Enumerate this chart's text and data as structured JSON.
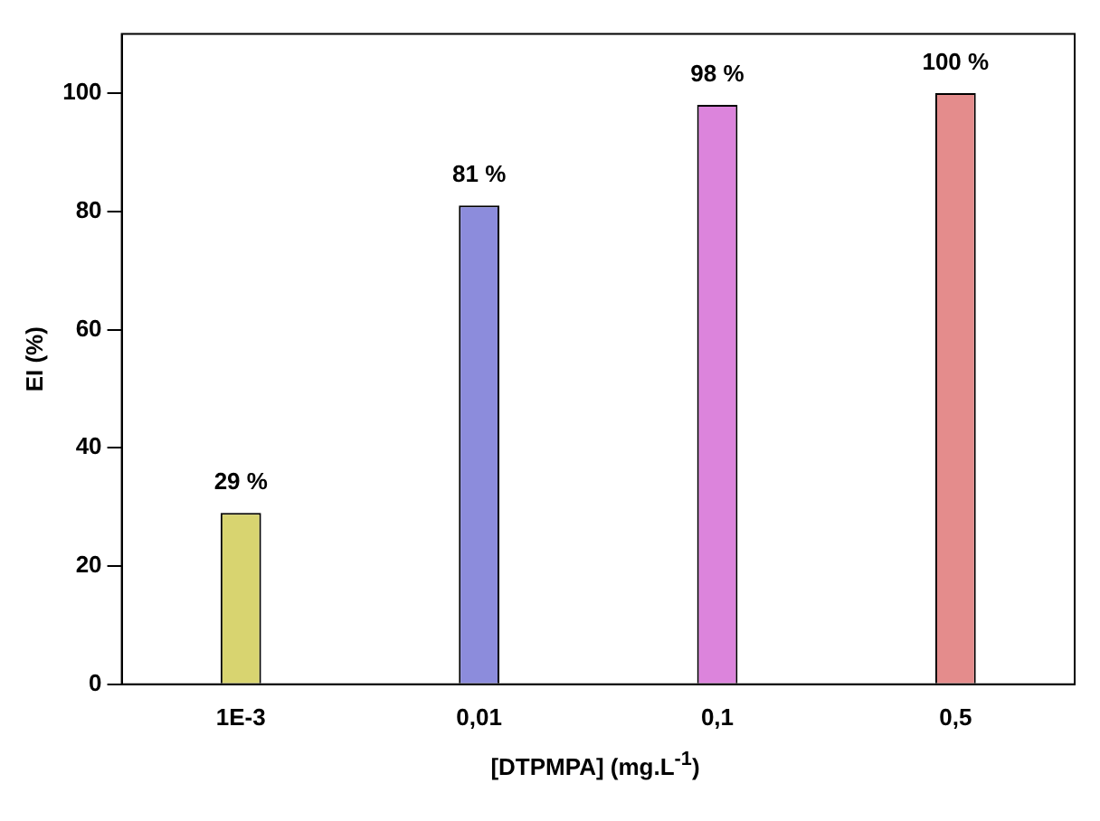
{
  "chart_data": {
    "type": "bar",
    "xlabel": "[DTPMPA] (mg.L$^{-1}$)",
    "ylabel": "EI (%)",
    "categories": [
      "1E-3",
      "0,01",
      "0,1",
      "0,5"
    ],
    "values": [
      29,
      81,
      98,
      100
    ],
    "colors": [
      "#d8d470",
      "#8c8cdc",
      "#dc84dc",
      "#e48c8c"
    ],
    "value_labels": [
      "29 %",
      "81 %",
      "98 %",
      "100 %"
    ],
    "ylim": [
      0,
      110
    ],
    "yticks": [
      0,
      20,
      40,
      60,
      80,
      100
    ],
    "grid": false,
    "legend": false
  }
}
